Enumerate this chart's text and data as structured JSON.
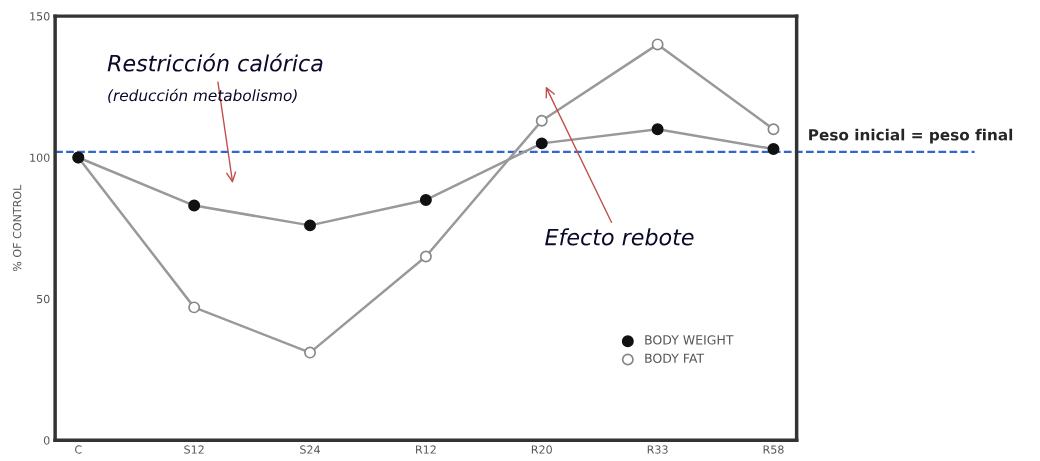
{
  "chart_data": {
    "type": "line",
    "ylabel": "% OF CONTROL",
    "categories": [
      "C",
      "S12",
      "S24",
      "R12",
      "R20",
      "R33",
      "R58"
    ],
    "ylim": [
      0,
      150
    ],
    "yticks": [
      0,
      50,
      100,
      150
    ],
    "marker": "circle",
    "series": [
      {
        "name": "BODY WEIGHT",
        "color": "#111111",
        "values": [
          100,
          83,
          76,
          85,
          105,
          110,
          103
        ]
      },
      {
        "name": "BODY FAT",
        "color": "#ffffff",
        "values": [
          100,
          47,
          31,
          65,
          113,
          140,
          110
        ]
      }
    ],
    "ref_lines": [
      {
        "axis": "y",
        "value": 102,
        "label": "Peso inicial = peso final",
        "color": "#3366cc",
        "line_style": "dashed"
      }
    ],
    "annotations": [
      "Restricción calórica",
      "(reducción metabolismo)",
      "Efecto rebote"
    ],
    "legend": "bottom right",
    "grid": false
  }
}
